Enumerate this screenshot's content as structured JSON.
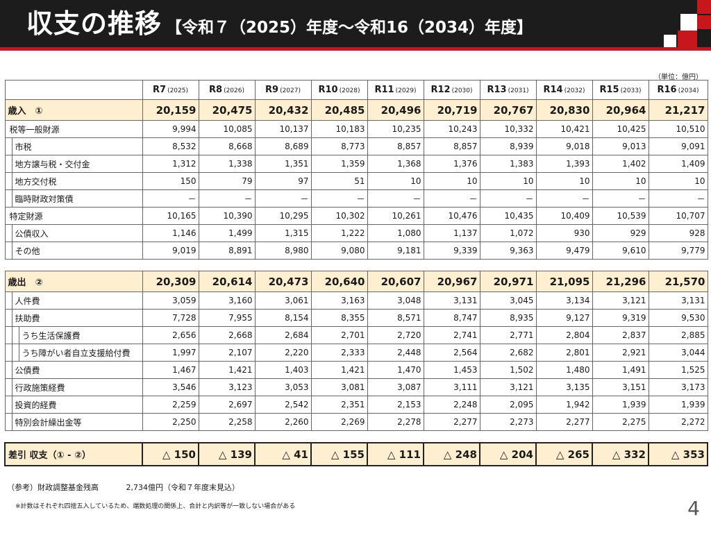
{
  "header": {
    "title": "収支の推移",
    "subtitle": "【令和７（2025）年度～令和16（2034）年度】",
    "accent_color": "#c8161d"
  },
  "unit_label": "（単位：億円）",
  "table": {
    "years": [
      {
        "label": "R7",
        "year": "(2025)"
      },
      {
        "label": "R8",
        "year": "(2026)"
      },
      {
        "label": "R9",
        "year": "(2027)"
      },
      {
        "label": "R10",
        "year": "(2028)"
      },
      {
        "label": "R11",
        "year": "(2029)"
      },
      {
        "label": "R12",
        "year": "(2030)"
      },
      {
        "label": "R13",
        "year": "(2031)"
      },
      {
        "label": "R14",
        "year": "(2032)"
      },
      {
        "label": "R15",
        "year": "(2033)"
      },
      {
        "label": "R16",
        "year": "(2034)"
      }
    ],
    "revenue_total": {
      "label": "歳入　①",
      "values": [
        "20,159",
        "20,475",
        "20,432",
        "20,485",
        "20,496",
        "20,719",
        "20,767",
        "20,830",
        "20,964",
        "21,217"
      ]
    },
    "revenue_rows": [
      {
        "label": "税等一般財源",
        "values": [
          "9,994",
          "10,085",
          "10,137",
          "10,183",
          "10,235",
          "10,243",
          "10,332",
          "10,421",
          "10,425",
          "10,510"
        ]
      },
      {
        "label": "市税",
        "values": [
          "8,532",
          "8,668",
          "8,689",
          "8,773",
          "8,857",
          "8,857",
          "8,939",
          "9,018",
          "9,013",
          "9,091"
        ]
      },
      {
        "label": "地方譲与税・交付金",
        "values": [
          "1,312",
          "1,338",
          "1,351",
          "1,359",
          "1,368",
          "1,376",
          "1,383",
          "1,393",
          "1,402",
          "1,409"
        ]
      },
      {
        "label": "地方交付税",
        "values": [
          "150",
          "79",
          "97",
          "51",
          "10",
          "10",
          "10",
          "10",
          "10",
          "10"
        ]
      },
      {
        "label": "臨時財政対策債",
        "values": [
          "－",
          "－",
          "－",
          "－",
          "－",
          "－",
          "－",
          "－",
          "－",
          "－"
        ]
      },
      {
        "label": "特定財源",
        "values": [
          "10,165",
          "10,390",
          "10,295",
          "10,302",
          "10,261",
          "10,476",
          "10,435",
          "10,409",
          "10,539",
          "10,707"
        ]
      },
      {
        "label": "公債収入",
        "values": [
          "1,146",
          "1,499",
          "1,315",
          "1,222",
          "1,080",
          "1,137",
          "1,072",
          "930",
          "929",
          "928"
        ]
      },
      {
        "label": "その他",
        "values": [
          "9,019",
          "8,891",
          "8,980",
          "9,080",
          "9,181",
          "9,339",
          "9,363",
          "9,479",
          "9,610",
          "9,779"
        ]
      }
    ],
    "expenditure_total": {
      "label": "歳出　②",
      "values": [
        "20,309",
        "20,614",
        "20,473",
        "20,640",
        "20,607",
        "20,967",
        "20,971",
        "21,095",
        "21,296",
        "21,570"
      ]
    },
    "expenditure_rows": [
      {
        "label": "人件費",
        "values": [
          "3,059",
          "3,160",
          "3,061",
          "3,163",
          "3,048",
          "3,131",
          "3,045",
          "3,134",
          "3,121",
          "3,131"
        ]
      },
      {
        "label": "扶助費",
        "values": [
          "7,728",
          "7,955",
          "8,154",
          "8,355",
          "8,571",
          "8,747",
          "8,935",
          "9,127",
          "9,319",
          "9,530"
        ]
      },
      {
        "label": "うち生活保護費",
        "values": [
          "2,656",
          "2,668",
          "2,684",
          "2,701",
          "2,720",
          "2,741",
          "2,771",
          "2,804",
          "2,837",
          "2,885"
        ]
      },
      {
        "label": "うち障がい者自立支援給付費",
        "values": [
          "1,997",
          "2,107",
          "2,220",
          "2,333",
          "2,448",
          "2,564",
          "2,682",
          "2,801",
          "2,921",
          "3,044"
        ]
      },
      {
        "label": "公債費",
        "values": [
          "1,467",
          "1,421",
          "1,403",
          "1,421",
          "1,470",
          "1,453",
          "1,502",
          "1,480",
          "1,491",
          "1,525"
        ]
      },
      {
        "label": "行政施策経費",
        "values": [
          "3,546",
          "3,123",
          "3,053",
          "3,081",
          "3,087",
          "3,111",
          "3,121",
          "3,135",
          "3,151",
          "3,173"
        ]
      },
      {
        "label": "投資的経費",
        "values": [
          "2,259",
          "2,697",
          "2,542",
          "2,351",
          "2,153",
          "2,248",
          "2,095",
          "1,942",
          "1,939",
          "1,939"
        ]
      },
      {
        "label": "特別会計繰出金等",
        "values": [
          "2,250",
          "2,258",
          "2,260",
          "2,269",
          "2,278",
          "2,277",
          "2,273",
          "2,277",
          "2,275",
          "2,272"
        ]
      }
    ],
    "balance": {
      "label": "差引 収支（① - ②）",
      "values": [
        "△ 150",
        "△ 139",
        "△ 41",
        "△ 155",
        "△ 111",
        "△ 248",
        "△ 204",
        "△ 265",
        "△ 332",
        "△ 353"
      ]
    }
  },
  "notes": {
    "reference_label": "（参考）財政調整基金残高",
    "reference_value": "2,734億円（令和７年度末見込）",
    "disclaimer": "※計数はそれぞれ四捨五入しているため、端数処理の関係上、合計と内訳等が一致しない場合がある"
  },
  "page_number": "4"
}
